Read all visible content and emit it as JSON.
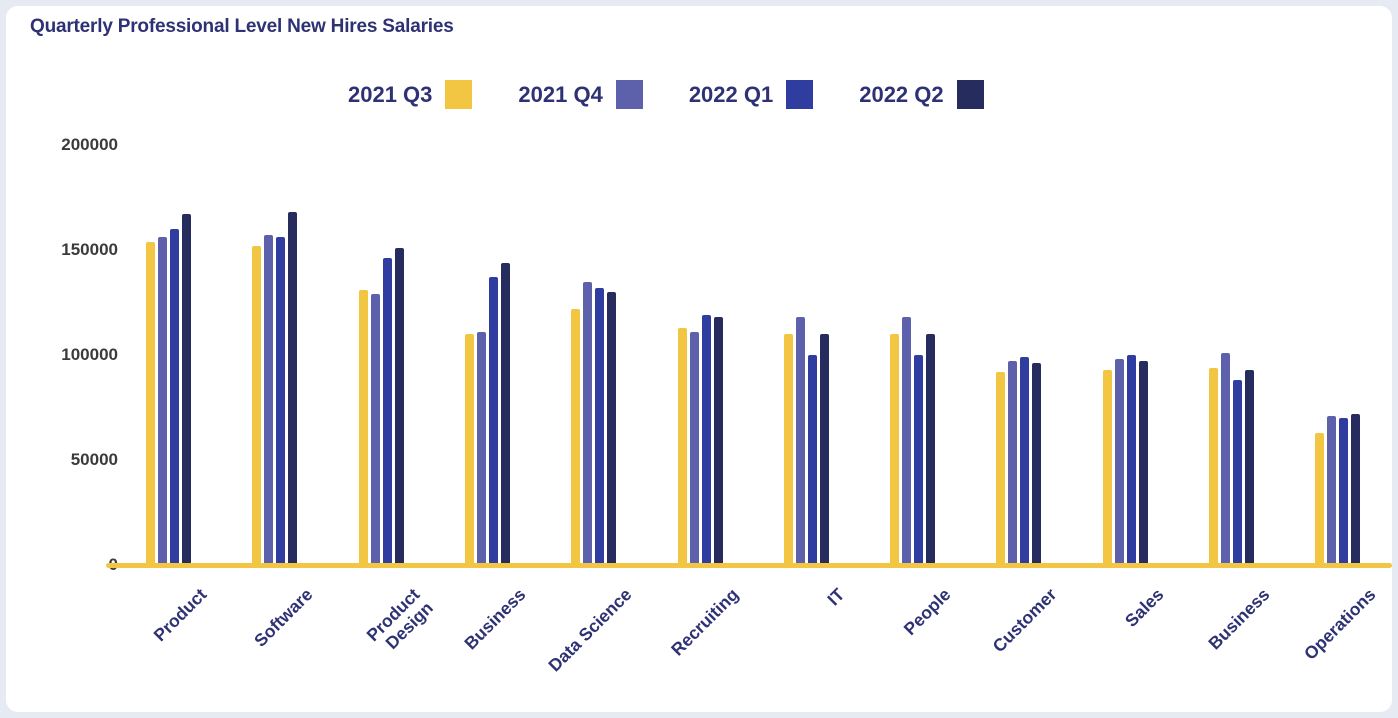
{
  "chart_data": {
    "type": "bar",
    "title": "Quarterly Professional Level New Hires Salaries",
    "categories": [
      "Product",
      "Software",
      "Product\nDesign",
      "Business",
      "Data Science",
      "Recruiting",
      "IT",
      "People",
      "Customer",
      "Sales",
      "Business",
      "Operations"
    ],
    "series": [
      {
        "name": "2021 Q3",
        "color": "#F2C643",
        "values": [
          154000,
          152000,
          131000,
          110000,
          122000,
          113000,
          110000,
          110000,
          92000,
          93000,
          94000,
          63000
        ]
      },
      {
        "name": "2021 Q4",
        "color": "#5D61AB",
        "values": [
          156000,
          157000,
          129000,
          111000,
          135000,
          111000,
          118000,
          118000,
          97000,
          98000,
          101000,
          71000
        ]
      },
      {
        "name": "2022 Q1",
        "color": "#303DA0",
        "values": [
          160000,
          156000,
          146000,
          137000,
          132000,
          119000,
          100000,
          100000,
          99000,
          100000,
          88000,
          70000
        ]
      },
      {
        "name": "2022 Q2",
        "color": "#262C5E",
        "values": [
          167000,
          168000,
          151000,
          144000,
          130000,
          118000,
          110000,
          110000,
          96000,
          97000,
          93000,
          72000
        ]
      }
    ],
    "ylim": [
      0,
      200000
    ],
    "yticks": [
      200000,
      150000,
      100000,
      50000,
      0
    ],
    "grid": false,
    "legend_position": "top",
    "axis_line_color": "#F2C643"
  },
  "colors": {
    "title_text": "#2E3274",
    "tick_text": "#3B3B3B",
    "background": "#E6EAF3",
    "card": "#FFFFFF"
  }
}
